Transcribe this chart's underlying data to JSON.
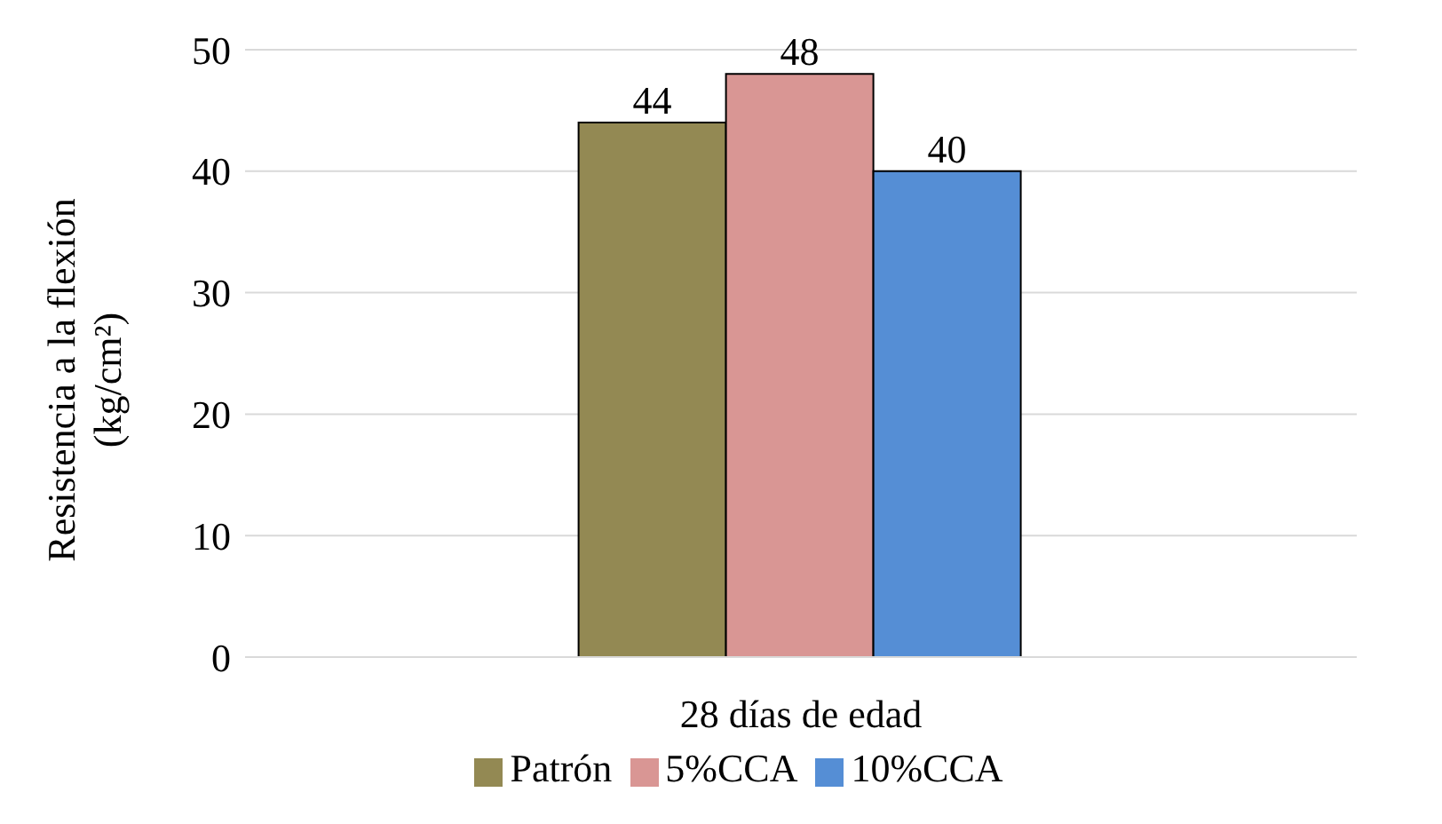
{
  "chart_data": {
    "type": "bar",
    "ylabel": "Resistencia a la flexión (kg/cm²)",
    "categories": [
      "28 días de edad"
    ],
    "series": [
      {
        "name": "Patrón",
        "color": "#938953",
        "values": [
          44
        ]
      },
      {
        "name": "5%CCA",
        "color": "#d99694",
        "values": [
          48
        ]
      },
      {
        "name": "10%CCA",
        "color": "#558ed5",
        "values": [
          40
        ]
      }
    ],
    "ylim": [
      0,
      50
    ],
    "yticks": [
      0,
      10,
      20,
      30,
      40,
      50
    ],
    "grid": "y",
    "legend": "bottom",
    "data_labels": true
  }
}
